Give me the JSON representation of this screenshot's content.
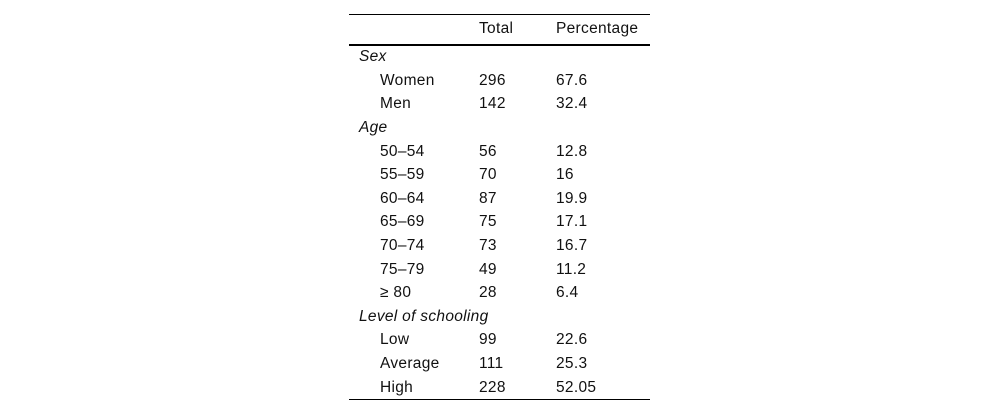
{
  "page": {
    "background_color": "#ffffff",
    "text_color": "#111111",
    "rule_color": "#000000"
  },
  "table": {
    "columns": [
      "",
      "Total",
      "Percentage"
    ],
    "sections": [
      {
        "header": "Sex",
        "rows": [
          [
            "Women",
            "296",
            "67.6"
          ],
          [
            "Men",
            "142",
            "32.4"
          ]
        ]
      },
      {
        "header": "Age",
        "rows": [
          [
            "50–54",
            "56",
            "12.8"
          ],
          [
            "55–59",
            "70",
            "16"
          ],
          [
            "60–64",
            "87",
            "19.9"
          ],
          [
            "65–69",
            "75",
            "17.1"
          ],
          [
            "70–74",
            "73",
            "16.7"
          ],
          [
            "75–79",
            "49",
            "11.2"
          ],
          [
            "≥ 80",
            "28",
            "6.4"
          ]
        ]
      },
      {
        "header": "Level of schooling",
        "rows": [
          [
            "Low",
            "99",
            "22.6"
          ],
          [
            "Average",
            "111",
            "25.3"
          ],
          [
            "High",
            "228",
            "52.05"
          ]
        ]
      }
    ]
  }
}
